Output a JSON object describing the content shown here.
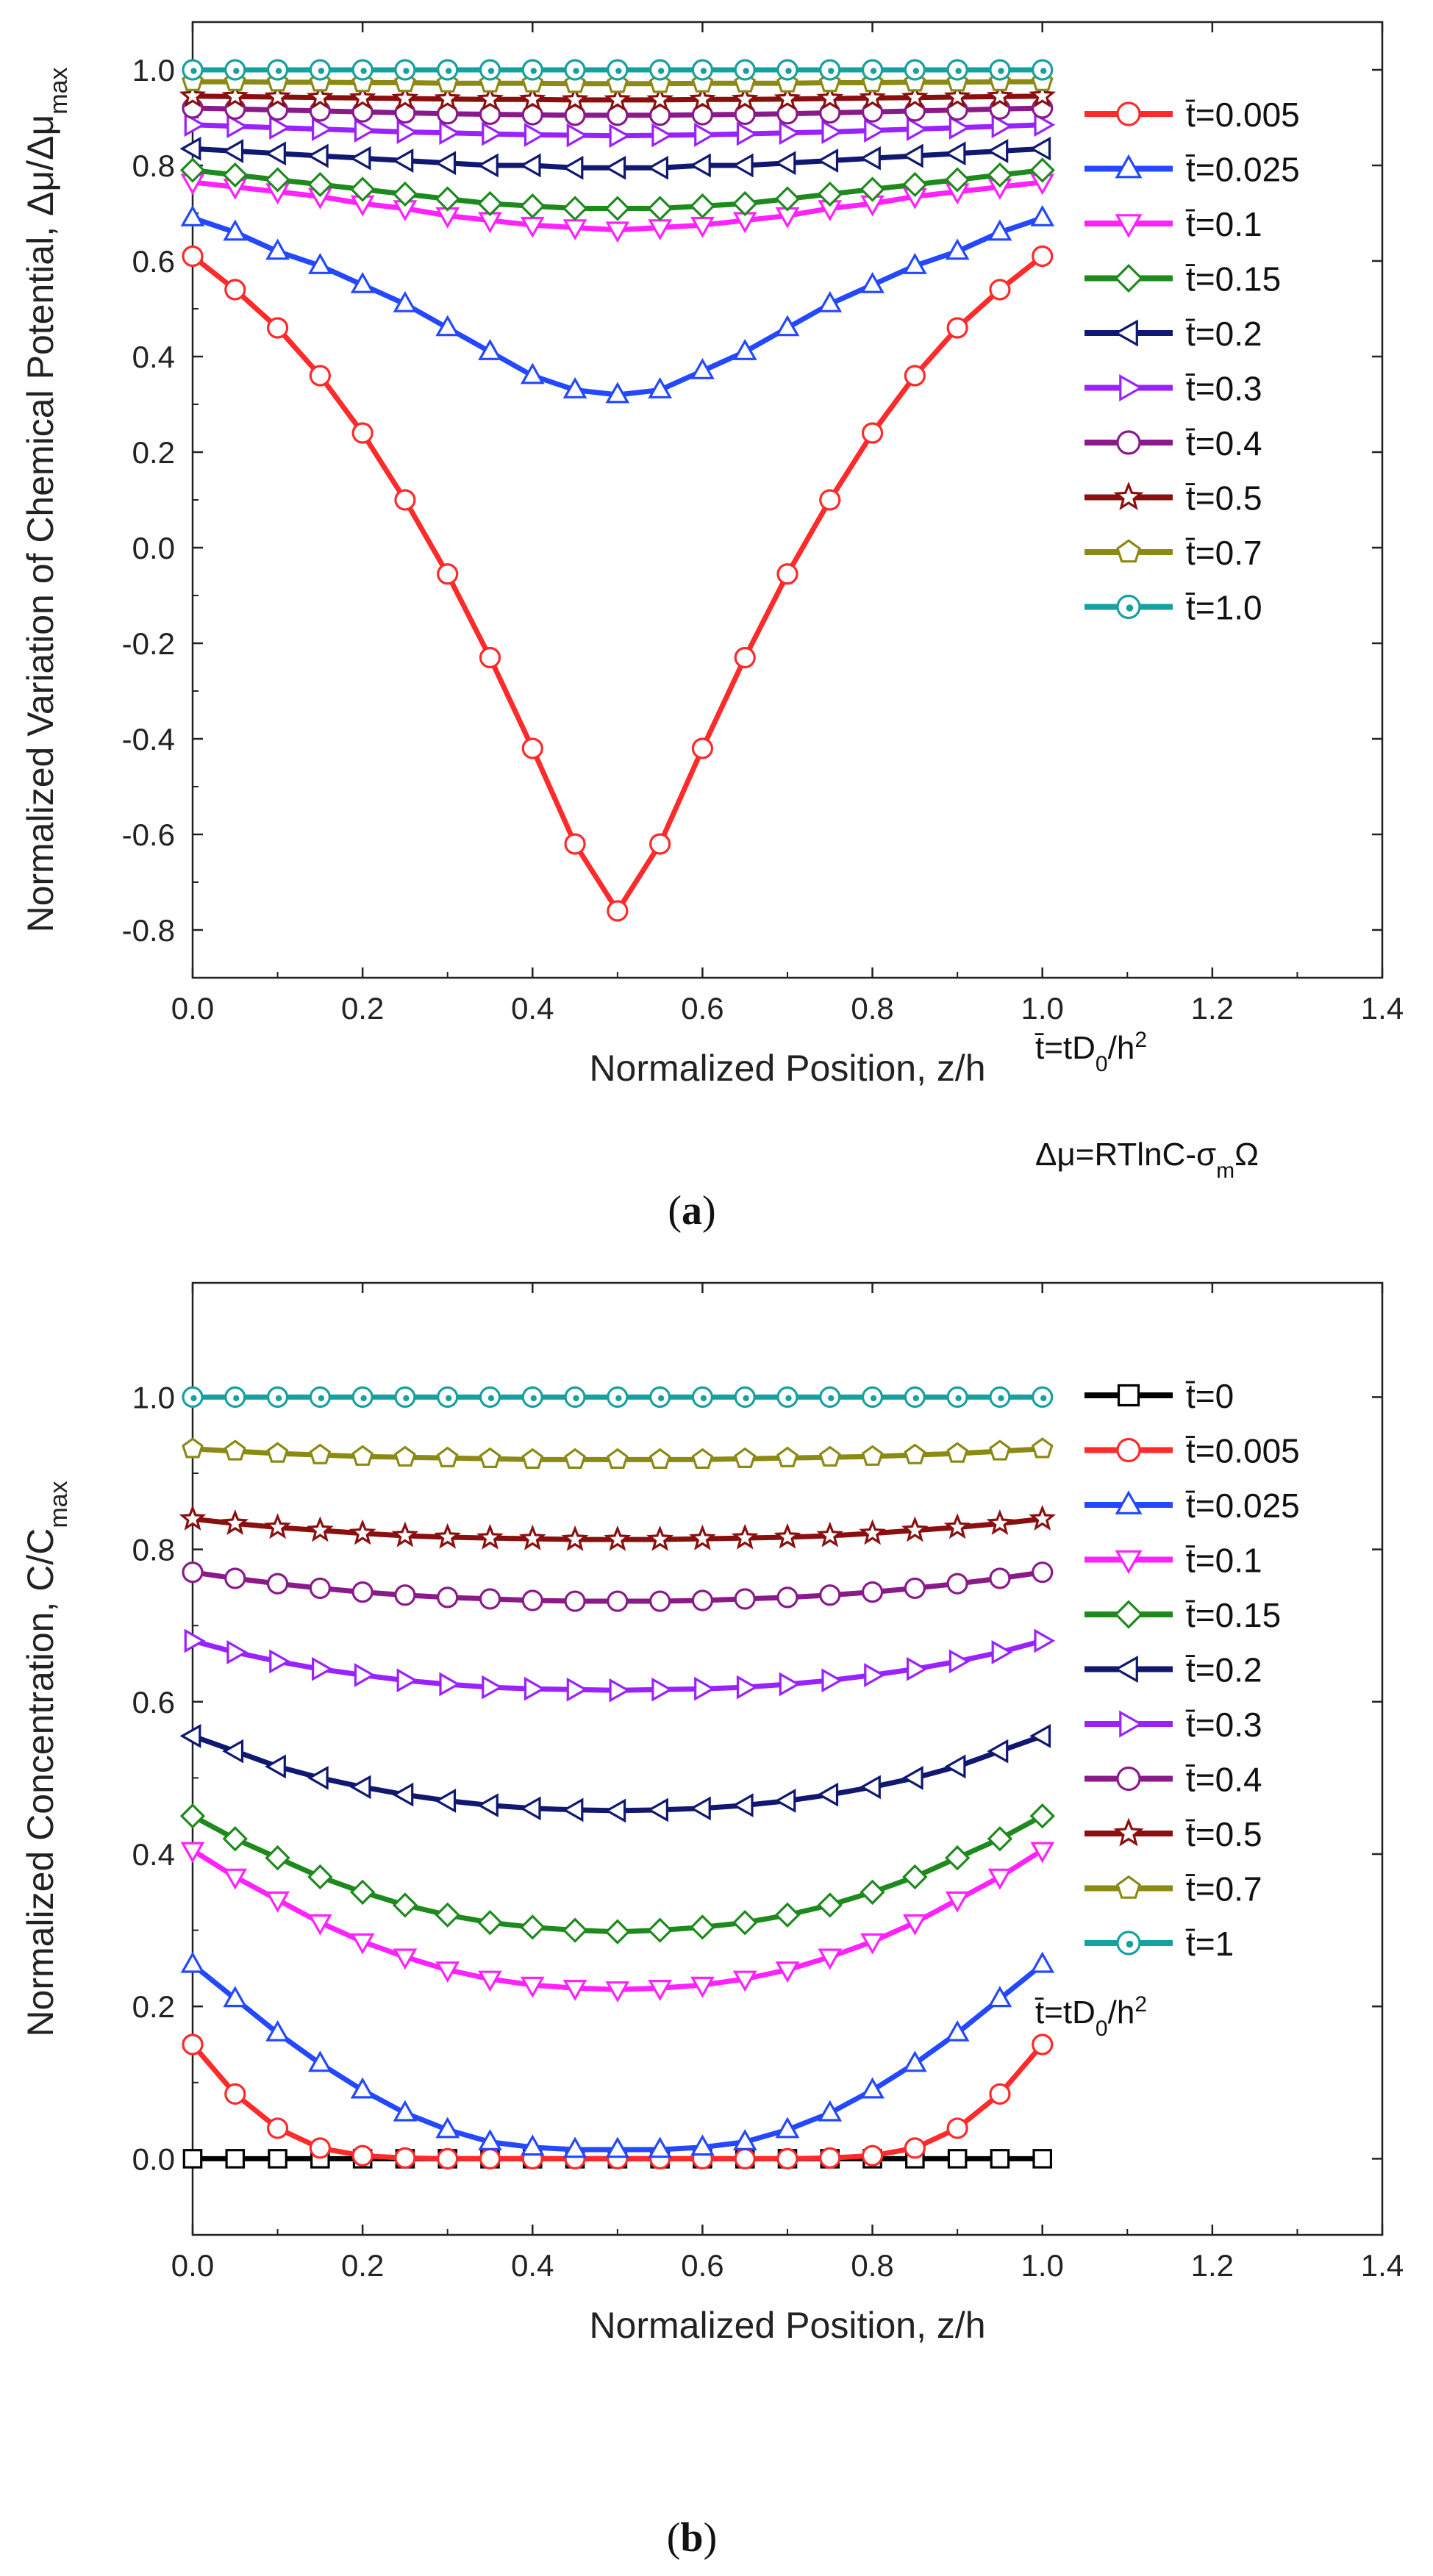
{
  "chart_data": [
    {
      "type": "line",
      "panel_label": "a",
      "xlabel": "Normalized Position, z/h",
      "ylabel": {
        "base": "Normalized Variation of Chemical Potential, Δμ/Δμ",
        "sub": "max"
      },
      "xlim": [
        0.0,
        1.4
      ],
      "ylim": [
        -0.9,
        1.1
      ],
      "xticks": [
        0.0,
        0.2,
        0.4,
        0.6,
        0.8,
        1.0,
        1.2,
        1.4
      ],
      "yticks": [
        -0.8,
        -0.6,
        -0.4,
        -0.2,
        0.0,
        0.2,
        0.4,
        0.6,
        0.8,
        1.0
      ],
      "xtick_labels": [
        "0.0",
        "0.2",
        "0.4",
        "0.6",
        "0.8",
        "1.0",
        "1.2",
        "1.4"
      ],
      "ytick_labels": [
        "-0.8",
        "-0.6",
        "-0.4",
        "-0.2",
        "0.0",
        "0.2",
        "0.4",
        "0.6",
        "0.8",
        "1.0"
      ],
      "legend_position": "right",
      "annotations": [
        {
          "base": "t̄=tD",
          "sub": "0",
          "tail": "/h",
          "sup": "2"
        },
        {
          "base": "Δμ=RTlnC-σ",
          "sub": "m",
          "tail": "Ω"
        }
      ],
      "x": [
        0.0,
        0.05,
        0.1,
        0.15,
        0.2,
        0.25,
        0.3,
        0.35,
        0.4,
        0.45,
        0.5,
        0.55,
        0.6,
        0.65,
        0.7,
        0.75,
        0.8,
        0.85,
        0.9,
        0.95,
        1.0
      ],
      "series": [
        {
          "name": "t̄=0.005",
          "color": "#ff2a2a",
          "marker": "circle",
          "values": [
            0.61,
            0.54,
            0.46,
            0.36,
            0.24,
            0.1,
            -0.055,
            -0.23,
            -0.42,
            -0.62,
            -0.76,
            -0.62,
            -0.42,
            -0.23,
            -0.055,
            0.1,
            0.24,
            0.36,
            0.46,
            0.54,
            0.61
          ]
        },
        {
          "name": "t̄=0.025",
          "color": "#2448ff",
          "marker": "triangle-up",
          "values": [
            0.69,
            0.66,
            0.62,
            0.59,
            0.55,
            0.51,
            0.46,
            0.41,
            0.36,
            0.33,
            0.32,
            0.33,
            0.37,
            0.41,
            0.46,
            0.51,
            0.55,
            0.59,
            0.62,
            0.66,
            0.69
          ]
        },
        {
          "name": "t̄=0.1",
          "color": "#ff22ff",
          "marker": "triangle-down",
          "values": [
            0.765,
            0.755,
            0.745,
            0.735,
            0.72,
            0.71,
            0.695,
            0.685,
            0.675,
            0.67,
            0.665,
            0.67,
            0.675,
            0.685,
            0.695,
            0.71,
            0.72,
            0.735,
            0.745,
            0.755,
            0.765
          ]
        },
        {
          "name": "t̄=0.15",
          "color": "#1e8a1e",
          "marker": "diamond",
          "values": [
            0.79,
            0.78,
            0.77,
            0.76,
            0.75,
            0.74,
            0.73,
            0.72,
            0.715,
            0.71,
            0.71,
            0.71,
            0.715,
            0.72,
            0.73,
            0.74,
            0.75,
            0.76,
            0.77,
            0.78,
            0.79
          ]
        },
        {
          "name": "t̄=0.2",
          "color": "#101870",
          "marker": "triangle-left",
          "values": [
            0.835,
            0.83,
            0.825,
            0.82,
            0.815,
            0.81,
            0.805,
            0.8,
            0.8,
            0.795,
            0.795,
            0.795,
            0.8,
            0.8,
            0.805,
            0.81,
            0.815,
            0.82,
            0.825,
            0.83,
            0.835
          ]
        },
        {
          "name": "t̄=0.3",
          "color": "#9a22ff",
          "marker": "triangle-right",
          "values": [
            0.885,
            0.882,
            0.879,
            0.876,
            0.873,
            0.87,
            0.868,
            0.866,
            0.864,
            0.863,
            0.862,
            0.863,
            0.864,
            0.866,
            0.868,
            0.87,
            0.873,
            0.876,
            0.879,
            0.882,
            0.885
          ]
        },
        {
          "name": "t̄=0.4",
          "color": "#8a1a8a",
          "marker": "circle",
          "values": [
            0.92,
            0.918,
            0.916,
            0.914,
            0.912,
            0.91,
            0.908,
            0.907,
            0.906,
            0.905,
            0.905,
            0.905,
            0.906,
            0.907,
            0.908,
            0.91,
            0.912,
            0.914,
            0.916,
            0.918,
            0.92
          ]
        },
        {
          "name": "t̄=0.5",
          "color": "#8a1010",
          "marker": "star",
          "values": [
            0.945,
            0.944,
            0.943,
            0.942,
            0.941,
            0.94,
            0.939,
            0.938,
            0.938,
            0.937,
            0.937,
            0.937,
            0.938,
            0.938,
            0.939,
            0.94,
            0.941,
            0.942,
            0.943,
            0.944,
            0.945
          ]
        },
        {
          "name": "t̄=0.7",
          "color": "#8a8a14",
          "marker": "pentagon",
          "values": [
            0.975,
            0.975,
            0.974,
            0.974,
            0.973,
            0.973,
            0.972,
            0.972,
            0.972,
            0.971,
            0.971,
            0.971,
            0.972,
            0.972,
            0.972,
            0.973,
            0.973,
            0.974,
            0.974,
            0.975,
            0.975
          ]
        },
        {
          "name": "t̄=1.0",
          "color": "#16a0a0",
          "marker": "circle-dot",
          "values": [
            1.0,
            1.0,
            1.0,
            1.0,
            1.0,
            1.0,
            1.0,
            1.0,
            1.0,
            1.0,
            1.0,
            1.0,
            1.0,
            1.0,
            1.0,
            1.0,
            1.0,
            1.0,
            1.0,
            1.0,
            1.0
          ]
        }
      ]
    },
    {
      "type": "line",
      "panel_label": "b",
      "xlabel": "Normalized Position, z/h",
      "ylabel": {
        "base": "Normalized Concentration, C/C",
        "sub": "max"
      },
      "xlim": [
        0.0,
        1.4
      ],
      "ylim": [
        -0.1,
        1.15
      ],
      "xticks": [
        0.0,
        0.2,
        0.4,
        0.6,
        0.8,
        1.0,
        1.2,
        1.4
      ],
      "yticks": [
        0.0,
        0.2,
        0.4,
        0.6,
        0.8,
        1.0
      ],
      "xtick_labels": [
        "0.0",
        "0.2",
        "0.4",
        "0.6",
        "0.8",
        "1.0",
        "1.2",
        "1.4"
      ],
      "ytick_labels": [
        "0.0",
        "0.2",
        "0.4",
        "0.6",
        "0.8",
        "1.0"
      ],
      "legend_position": "right",
      "annotations": [
        {
          "base": "t̄=tD",
          "sub": "0",
          "tail": "/h",
          "sup": "2"
        }
      ],
      "x": [
        0.0,
        0.05,
        0.1,
        0.15,
        0.2,
        0.25,
        0.3,
        0.35,
        0.4,
        0.45,
        0.5,
        0.55,
        0.6,
        0.65,
        0.7,
        0.75,
        0.8,
        0.85,
        0.9,
        0.95,
        1.0
      ],
      "series": [
        {
          "name": "t̄=0",
          "color": "#000000",
          "marker": "square",
          "values": [
            0,
            0,
            0,
            0,
            0,
            0,
            0,
            0,
            0,
            0,
            0,
            0,
            0,
            0,
            0,
            0,
            0,
            0,
            0,
            0,
            0
          ]
        },
        {
          "name": "t̄=0.005",
          "color": "#ff2a2a",
          "marker": "circle",
          "values": [
            0.15,
            0.085,
            0.04,
            0.014,
            0.004,
            0.001,
            0,
            0,
            0,
            0,
            0,
            0,
            0,
            0,
            0,
            0.001,
            0.004,
            0.014,
            0.04,
            0.085,
            0.15
          ]
        },
        {
          "name": "t̄=0.025",
          "color": "#2448ff",
          "marker": "triangle-up",
          "values": [
            0.255,
            0.21,
            0.165,
            0.125,
            0.09,
            0.06,
            0.038,
            0.022,
            0.015,
            0.012,
            0.012,
            0.012,
            0.015,
            0.022,
            0.038,
            0.06,
            0.09,
            0.125,
            0.165,
            0.21,
            0.255
          ]
        },
        {
          "name": "t̄=0.1",
          "color": "#ff22ff",
          "marker": "triangle-down",
          "values": [
            0.405,
            0.37,
            0.34,
            0.31,
            0.285,
            0.265,
            0.248,
            0.236,
            0.228,
            0.224,
            0.222,
            0.224,
            0.228,
            0.236,
            0.248,
            0.265,
            0.285,
            0.31,
            0.34,
            0.37,
            0.405
          ]
        },
        {
          "name": "t̄=0.15",
          "color": "#1e8a1e",
          "marker": "diamond",
          "values": [
            0.45,
            0.42,
            0.395,
            0.37,
            0.35,
            0.333,
            0.32,
            0.31,
            0.304,
            0.3,
            0.298,
            0.3,
            0.304,
            0.31,
            0.32,
            0.333,
            0.35,
            0.37,
            0.395,
            0.42,
            0.45
          ]
        },
        {
          "name": "t̄=0.2",
          "color": "#101870",
          "marker": "triangle-left",
          "values": [
            0.555,
            0.535,
            0.515,
            0.5,
            0.488,
            0.478,
            0.47,
            0.464,
            0.46,
            0.458,
            0.457,
            0.458,
            0.46,
            0.464,
            0.47,
            0.478,
            0.488,
            0.5,
            0.515,
            0.535,
            0.555
          ]
        },
        {
          "name": "t̄=0.3",
          "color": "#9a22ff",
          "marker": "triangle-right",
          "values": [
            0.68,
            0.665,
            0.653,
            0.643,
            0.635,
            0.628,
            0.623,
            0.619,
            0.617,
            0.616,
            0.615,
            0.616,
            0.617,
            0.619,
            0.623,
            0.628,
            0.635,
            0.643,
            0.653,
            0.665,
            0.68
          ]
        },
        {
          "name": "t̄=0.4",
          "color": "#8a1a8a",
          "marker": "circle",
          "values": [
            0.77,
            0.762,
            0.755,
            0.749,
            0.744,
            0.74,
            0.737,
            0.735,
            0.733,
            0.732,
            0.732,
            0.732,
            0.733,
            0.735,
            0.737,
            0.74,
            0.744,
            0.749,
            0.755,
            0.762,
            0.77
          ]
        },
        {
          "name": "t̄=0.5",
          "color": "#8a1010",
          "marker": "star",
          "values": [
            0.84,
            0.834,
            0.829,
            0.825,
            0.821,
            0.818,
            0.816,
            0.815,
            0.814,
            0.813,
            0.813,
            0.813,
            0.814,
            0.815,
            0.816,
            0.818,
            0.821,
            0.825,
            0.829,
            0.834,
            0.84
          ]
        },
        {
          "name": "t̄=0.7",
          "color": "#8a8a14",
          "marker": "pentagon",
          "values": [
            0.932,
            0.929,
            0.926,
            0.924,
            0.922,
            0.921,
            0.92,
            0.919,
            0.918,
            0.918,
            0.918,
            0.918,
            0.918,
            0.919,
            0.92,
            0.921,
            0.922,
            0.924,
            0.926,
            0.929,
            0.932
          ]
        },
        {
          "name": "t̄=1",
          "color": "#16a0a0",
          "marker": "circle-dot",
          "values": [
            1.0,
            1.0,
            1.0,
            1.0,
            1.0,
            1.0,
            1.0,
            1.0,
            1.0,
            1.0,
            1.0,
            1.0,
            1.0,
            1.0,
            1.0,
            1.0,
            1.0,
            1.0,
            1.0,
            1.0,
            1.0
          ]
        }
      ]
    }
  ]
}
